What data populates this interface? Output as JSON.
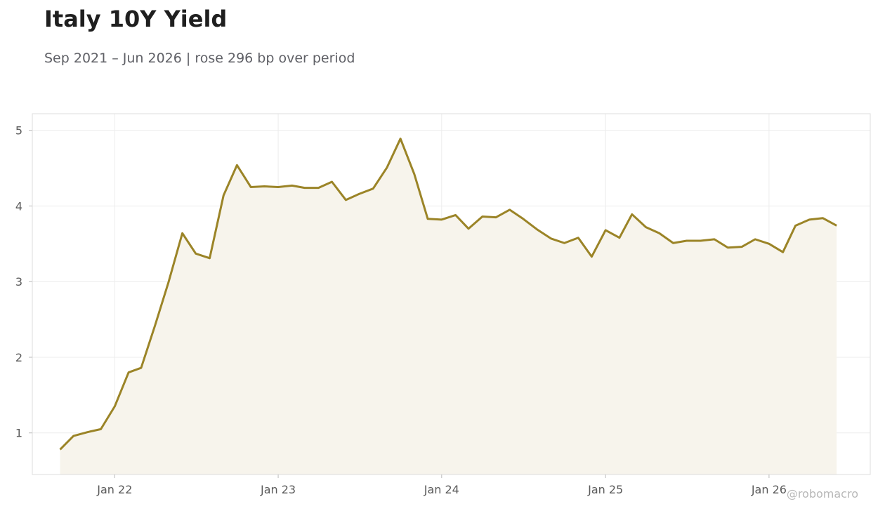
{
  "title": "Italy 10Y Yield",
  "subtitle": "Sep 2021 – Jun 2026 | rose 296 bp over period",
  "watermark": "@robomacro",
  "colors": {
    "line": "#9b8427",
    "fill": "#f7f4ec",
    "grid": "#ececec",
    "frame": "#dddddd"
  },
  "chart_data": {
    "type": "area",
    "title": "Italy 10Y Yield",
    "subtitle": "Sep 2021 – Jun 2026 | rose 296 bp over period",
    "xlabel": "",
    "ylabel": "",
    "ylim": [
      0.45,
      5.22
    ],
    "xlim": [
      "2021-07-01",
      "2026-08-15"
    ],
    "yticks": [
      1,
      2,
      3,
      4,
      5
    ],
    "xticks": [
      {
        "date": "2022-01-01",
        "label": "Jan 22"
      },
      {
        "date": "2023-01-01",
        "label": "Jan 23"
      },
      {
        "date": "2024-01-01",
        "label": "Jan 24"
      },
      {
        "date": "2025-01-01",
        "label": "Jan 25"
      },
      {
        "date": "2026-01-01",
        "label": "Jan 26"
      }
    ],
    "grid": true,
    "legend": "none",
    "series": [
      {
        "x": [
          "2021-09-01",
          "2021-10-01",
          "2021-11-01",
          "2021-12-01",
          "2022-01-01",
          "2022-02-01",
          "2022-03-01",
          "2022-04-01",
          "2022-05-01",
          "2022-06-01",
          "2022-07-01",
          "2022-08-01",
          "2022-09-01",
          "2022-10-01",
          "2022-11-01",
          "2022-12-01",
          "2023-01-01",
          "2023-02-01",
          "2023-03-01",
          "2023-04-01",
          "2023-05-01",
          "2023-06-01",
          "2023-07-01",
          "2023-08-01",
          "2023-09-01",
          "2023-10-01",
          "2023-11-01",
          "2023-12-01",
          "2024-01-01",
          "2024-02-01",
          "2024-03-01",
          "2024-04-01",
          "2024-05-01",
          "2024-06-01",
          "2024-07-01",
          "2024-08-01",
          "2024-09-01",
          "2024-10-01",
          "2024-11-01",
          "2024-12-01",
          "2025-01-01",
          "2025-02-01",
          "2025-03-01",
          "2025-04-01",
          "2025-05-01",
          "2025-06-01",
          "2025-07-01",
          "2025-08-01",
          "2025-09-01",
          "2025-10-01",
          "2025-11-01",
          "2025-12-01",
          "2026-01-01",
          "2026-02-01",
          "2026-03-01",
          "2026-04-01",
          "2026-05-01",
          "2026-06-01"
        ],
        "values": [
          0.78,
          0.96,
          1.01,
          1.05,
          1.35,
          1.8,
          1.86,
          2.42,
          2.99,
          3.64,
          3.37,
          3.31,
          4.14,
          4.54,
          4.25,
          4.26,
          4.25,
          4.27,
          4.24,
          4.24,
          4.32,
          4.08,
          4.16,
          4.23,
          4.51,
          4.89,
          4.42,
          3.83,
          3.82,
          3.88,
          3.7,
          3.86,
          3.85,
          3.95,
          3.83,
          3.69,
          3.57,
          3.51,
          3.58,
          3.33,
          3.68,
          3.58,
          3.89,
          3.72,
          3.64,
          3.51,
          3.54,
          3.54,
          3.56,
          3.45,
          3.46,
          3.56,
          3.5,
          3.39,
          3.74,
          3.82,
          3.84,
          3.74
        ]
      }
    ]
  }
}
